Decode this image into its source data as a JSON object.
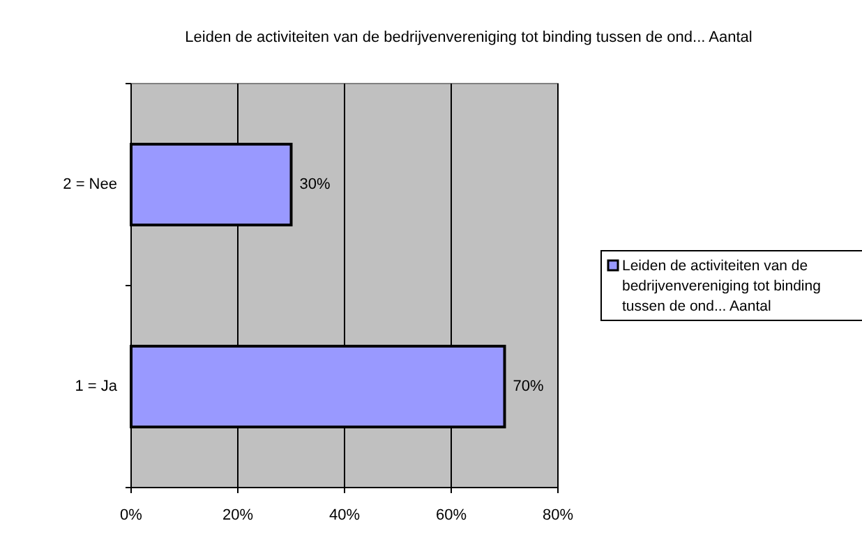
{
  "chart_data": {
    "type": "bar",
    "orientation": "horizontal",
    "title": "Leiden de activiteiten van de bedrijvenvereniging tot binding tussen de ond... Aantal",
    "categories": [
      "2 = Nee",
      "1 = Ja"
    ],
    "series": [
      {
        "name": "Leiden de activiteiten van de bedrijvenvereniging tot binding tussen de ond... Aantal",
        "color": "#9999ff",
        "values": [
          30,
          70
        ],
        "value_labels": [
          "30%",
          "70%"
        ]
      }
    ],
    "xlim": [
      0,
      80
    ],
    "xticks": [
      {
        "value": 0,
        "label": "0%"
      },
      {
        "value": 20,
        "label": "20%"
      },
      {
        "value": 40,
        "label": "40%"
      },
      {
        "value": 60,
        "label": "60%"
      },
      {
        "value": 80,
        "label": "80%"
      }
    ],
    "grid": "x",
    "legend": "right"
  }
}
